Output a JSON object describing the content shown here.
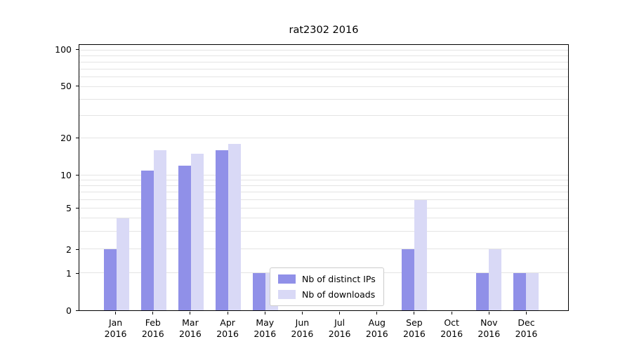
{
  "title": "rat2302 2016",
  "chart_data": {
    "type": "bar",
    "title": "rat2302 2016",
    "scale": "symlog",
    "grid": true,
    "legend_position": "lower center",
    "year": "2016",
    "categories": [
      "Jan",
      "Feb",
      "Mar",
      "Apr",
      "May",
      "Jun",
      "Jul",
      "Aug",
      "Sep",
      "Oct",
      "Nov",
      "Dec"
    ],
    "yticks": [
      0,
      1,
      2,
      5,
      10,
      20,
      50,
      100
    ],
    "ylim": [
      0,
      110
    ],
    "series": [
      {
        "name": "Nb of distinct IPs",
        "color": "#9090e8",
        "values": [
          2,
          11,
          12,
          16,
          1,
          0,
          0,
          0,
          2,
          0,
          1,
          1
        ]
      },
      {
        "name": "Nb of downloads",
        "color": "#d9d9f6",
        "values": [
          4,
          16,
          15,
          18,
          1,
          0,
          0,
          0,
          6,
          0,
          2,
          1
        ]
      }
    ]
  }
}
